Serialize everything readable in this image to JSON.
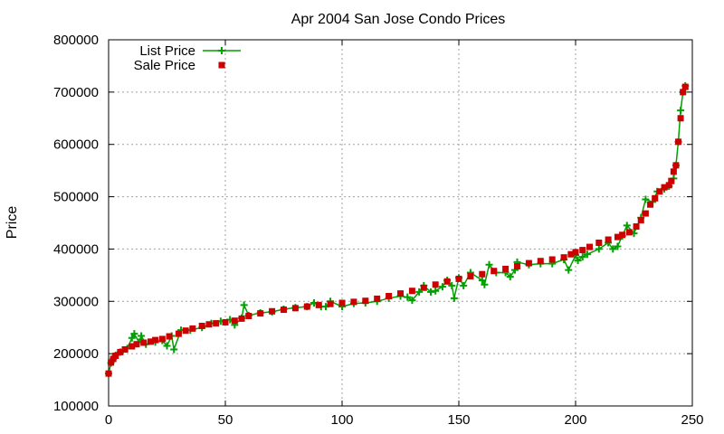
{
  "chart_data": {
    "type": "line",
    "title": "Apr 2004 San Jose Condo Prices",
    "xlabel": "",
    "ylabel": "Price",
    "xlim": [
      0,
      250
    ],
    "ylim": [
      100000,
      800000
    ],
    "x_ticks": [
      "0",
      "50",
      "100",
      "150",
      "200",
      "250"
    ],
    "y_ticks": [
      "100000",
      "200000",
      "300000",
      "400000",
      "500000",
      "600000",
      "700000",
      "800000"
    ],
    "grid": true,
    "legend_position": "top-left",
    "series": [
      {
        "name": "List Price",
        "style": "line-with-plus-markers",
        "color": "#00a000",
        "x": [
          0,
          1,
          2,
          3,
          5,
          8,
          10,
          11,
          13,
          14,
          16,
          20,
          23,
          25,
          27,
          28,
          31,
          35,
          40,
          44,
          48,
          52,
          54,
          57,
          58,
          60,
          65,
          70,
          75,
          80,
          85,
          88,
          91,
          93,
          95,
          100,
          105,
          110,
          115,
          120,
          125,
          128,
          130,
          133,
          135,
          138,
          140,
          143,
          145,
          147,
          148,
          150,
          152,
          155,
          160,
          161,
          163,
          166,
          170,
          172,
          174,
          175,
          180,
          185,
          190,
          195,
          197,
          200,
          201,
          203,
          205,
          210,
          214,
          216,
          218,
          220,
          222,
          225,
          228,
          230,
          233,
          235,
          238,
          240,
          242,
          243,
          244,
          245,
          246,
          247
        ],
        "y": [
          162000,
          182000,
          190000,
          197000,
          203000,
          210000,
          230000,
          238000,
          222000,
          234000,
          218000,
          222000,
          225000,
          215000,
          234000,
          208000,
          245000,
          245000,
          250000,
          258000,
          262000,
          265000,
          255000,
          268000,
          293000,
          273000,
          278000,
          280000,
          285000,
          288000,
          290000,
          297000,
          290000,
          290000,
          300000,
          290000,
          296000,
          297000,
          300000,
          306000,
          310000,
          308000,
          302000,
          318000,
          330000,
          318000,
          320000,
          328000,
          340000,
          330000,
          306000,
          345000,
          330000,
          355000,
          340000,
          332000,
          370000,
          355000,
          355000,
          347000,
          360000,
          375000,
          370000,
          372000,
          372000,
          380000,
          360000,
          388000,
          378000,
          385000,
          390000,
          400000,
          412000,
          400000,
          405000,
          425000,
          445000,
          430000,
          460000,
          495000,
          490000,
          510000,
          515000,
          520000,
          535000,
          560000,
          605000,
          665000,
          700000,
          712000
        ]
      },
      {
        "name": "Sale Price",
        "style": "square-markers",
        "color": "#cc0000",
        "x": [
          0,
          1,
          2,
          3,
          5,
          7,
          10,
          12,
          15,
          18,
          20,
          23,
          26,
          30,
          33,
          36,
          40,
          43,
          46,
          50,
          54,
          57,
          60,
          65,
          70,
          75,
          80,
          85,
          90,
          95,
          100,
          105,
          110,
          115,
          120,
          125,
          130,
          135,
          140,
          145,
          150,
          155,
          160,
          165,
          170,
          175,
          180,
          185,
          190,
          195,
          198,
          200,
          203,
          206,
          210,
          214,
          218,
          220,
          223,
          226,
          228,
          230,
          232,
          234,
          236,
          238,
          240,
          241,
          242,
          243,
          244,
          245,
          246,
          247
        ],
        "y": [
          162000,
          183000,
          190000,
          196000,
          203000,
          208000,
          214000,
          218000,
          221000,
          223000,
          226000,
          228000,
          233000,
          238000,
          244000,
          248000,
          253000,
          256000,
          258000,
          260000,
          263000,
          267000,
          272000,
          277000,
          281000,
          284000,
          287000,
          290000,
          293000,
          295000,
          297000,
          299000,
          301000,
          305000,
          310000,
          315000,
          320000,
          326000,
          332000,
          338000,
          343000,
          348000,
          352000,
          358000,
          362000,
          367000,
          373000,
          377000,
          380000,
          384000,
          390000,
          394000,
          398000,
          404000,
          412000,
          418000,
          423000,
          427000,
          432000,
          443000,
          455000,
          468000,
          485000,
          497000,
          510000,
          518000,
          522000,
          530000,
          548000,
          560000,
          605000,
          650000,
          700000,
          710000
        ]
      }
    ]
  }
}
